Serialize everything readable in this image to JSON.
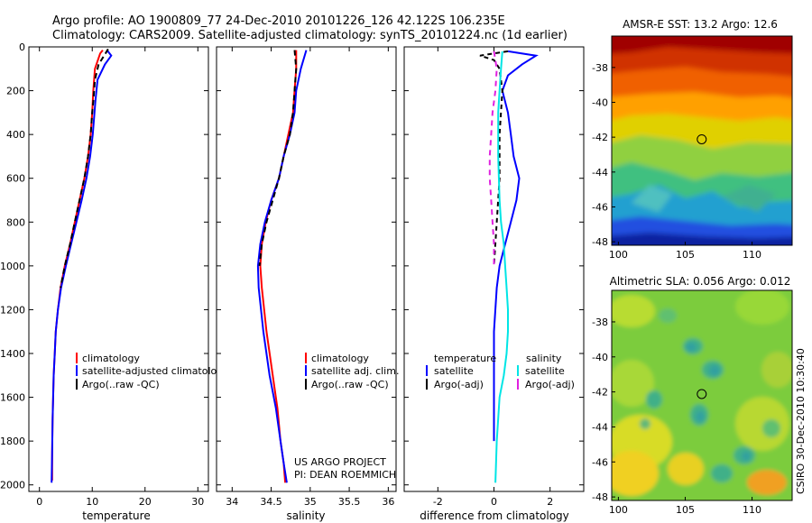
{
  "figure": {
    "title_line1": "Argo profile: AO 1900809_77 24-Dec-2010 20101226_126 42.122S 106.235E",
    "title_line2": "Climatology: CARS2009. Satellite-adjusted climatology: synTS_20101224.nc (1d earlier)",
    "credit_line1": "US ARGO PROJECT",
    "credit_line2": "PI: DEAN ROEMMICH",
    "side_label": "CSIRO 30-Dec-2010 10:30:40"
  },
  "colors": {
    "climatology": "#ff0000",
    "satellite": "#0000ff",
    "argo": "#000000",
    "satellite_salinity": "#00e5e5",
    "argo_salinity": "#e020e0"
  },
  "chart_data": [
    {
      "id": "temperature",
      "type": "line",
      "xlabel": "temperature",
      "xlim": [
        -2,
        32
      ],
      "xticks": [
        0,
        10,
        20,
        30
      ],
      "ylim": [
        2030,
        0
      ],
      "yticks": [
        0,
        200,
        400,
        600,
        800,
        1000,
        1200,
        1400,
        1600,
        1800,
        2000
      ],
      "legend": [
        "climatology",
        "satellite-adjusted climatology",
        "Argo(..raw -QC)"
      ],
      "series": [
        {
          "name": "climatology",
          "color": "#ff0000",
          "dash": "",
          "x": [
            12.0,
            11.5,
            10.5,
            10.2,
            10.0,
            9.7,
            9.2,
            8.5,
            7.6,
            6.7,
            5.8,
            4.8,
            4.0,
            3.5,
            3.1,
            2.9,
            2.7,
            2.5,
            2.4,
            2.4
          ],
          "y": [
            15,
            30,
            100,
            200,
            300,
            400,
            500,
            600,
            700,
            800,
            900,
            1000,
            1100,
            1200,
            1300,
            1400,
            1500,
            1700,
            1850,
            1980
          ]
        },
        {
          "name": "satellite-adjusted climatology",
          "color": "#0000ff",
          "dash": "",
          "x": [
            12.8,
            13.6,
            12.4,
            11.0,
            10.6,
            10.1,
            9.6,
            8.9,
            8.0,
            7.0,
            6.0,
            5.0,
            4.1,
            3.5,
            3.1,
            2.9,
            2.7,
            2.5,
            2.4,
            2.3
          ],
          "y": [
            15,
            40,
            80,
            150,
            250,
            400,
            500,
            600,
            700,
            800,
            900,
            1000,
            1100,
            1200,
            1300,
            1400,
            1500,
            1700,
            1850,
            1990
          ]
        },
        {
          "name": "Argo(..raw -QC)",
          "color": "#000000",
          "dash": "6,4",
          "x": [
            13.0,
            12.5,
            11.2,
            10.5,
            10.2,
            10.0,
            9.7,
            9.2,
            8.5,
            7.6,
            6.7,
            5.8,
            4.8,
            4.0
          ],
          "y": [
            10,
            30,
            80,
            150,
            250,
            300,
            400,
            500,
            600,
            700,
            800,
            900,
            1000,
            1100
          ]
        }
      ]
    },
    {
      "id": "salinity",
      "type": "line",
      "xlabel": "salinity",
      "xlim": [
        33.8,
        36.1
      ],
      "xticks": [
        34,
        34.5,
        35,
        35.5,
        36
      ],
      "ylim": [
        2030,
        0
      ],
      "legend": [
        "climatology",
        "satellite adj. clim.",
        "Argo(..raw -QC)"
      ],
      "series": [
        {
          "name": "climatology",
          "color": "#ff0000",
          "dash": "",
          "x": [
            34.82,
            34.82,
            34.8,
            34.78,
            34.72,
            34.66,
            34.6,
            34.5,
            34.43,
            34.38,
            34.36,
            34.38,
            34.44,
            34.52,
            34.58,
            34.62,
            34.66,
            34.68
          ],
          "y": [
            15,
            100,
            200,
            300,
            400,
            500,
            600,
            700,
            800,
            900,
            1000,
            1100,
            1300,
            1500,
            1650,
            1800,
            1900,
            1990
          ]
        },
        {
          "name": "satellite adj. clim.",
          "color": "#0000ff",
          "dash": "",
          "x": [
            34.95,
            34.88,
            34.82,
            34.8,
            34.74,
            34.66,
            34.6,
            34.5,
            34.42,
            34.36,
            34.33,
            34.34,
            34.4,
            34.48,
            34.56,
            34.62,
            34.66,
            34.7
          ],
          "y": [
            15,
            100,
            200,
            300,
            400,
            500,
            600,
            700,
            800,
            900,
            1000,
            1100,
            1300,
            1500,
            1650,
            1800,
            1900,
            1990
          ]
        },
        {
          "name": "Argo(..raw -QC)",
          "color": "#000000",
          "dash": "6,4",
          "x": [
            34.8,
            34.82,
            34.8,
            34.78,
            34.74,
            34.66,
            34.6,
            34.52,
            34.44,
            34.38,
            34.35
          ],
          "y": [
            15,
            100,
            200,
            300,
            400,
            500,
            600,
            700,
            800,
            900,
            1000
          ]
        }
      ]
    },
    {
      "id": "difference",
      "type": "line",
      "xlabel": "difference from climatology",
      "xlim": [
        -3.2,
        3.2
      ],
      "xticks": [
        -2,
        0,
        2
      ],
      "ylim": [
        2030,
        0
      ],
      "legend_left_title": "temperature",
      "legend_right_title": "salinity",
      "legend": [
        "satellite",
        "Argo(-adj)",
        "satellite",
        "Argo(-adj)"
      ],
      "series": [
        {
          "name": "satellite",
          "group": "temperature",
          "color": "#0000ff",
          "dash": "",
          "x": [
            0.5,
            1.5,
            1.0,
            0.5,
            0.3,
            0.5,
            0.6,
            0.7,
            0.9,
            0.8,
            0.6,
            0.4,
            0.2,
            0.1,
            0.0,
            0.0,
            0.0
          ],
          "y": [
            20,
            40,
            80,
            130,
            200,
            300,
            400,
            500,
            600,
            700,
            800,
            900,
            1000,
            1100,
            1300,
            1500,
            1800
          ]
        },
        {
          "name": "Argo(-adj)",
          "group": "temperature",
          "color": "#000000",
          "dash": "5,4",
          "x": [
            0.5,
            -0.5,
            0.0,
            0.2,
            0.3,
            0.2,
            0.2,
            0.1,
            0.0
          ],
          "y": [
            20,
            40,
            60,
            100,
            200,
            400,
            600,
            800,
            1000
          ]
        },
        {
          "name": "satellite",
          "group": "salinity",
          "color": "#00e5e5",
          "dash": "",
          "x": [
            0.3,
            0.25,
            0.2,
            0.15,
            0.15,
            0.2,
            0.25,
            0.35,
            0.4,
            0.45,
            0.5,
            0.5,
            0.45,
            0.35,
            0.2,
            0.1,
            0.05
          ],
          "y": [
            20,
            100,
            200,
            300,
            500,
            700,
            800,
            900,
            1000,
            1100,
            1200,
            1300,
            1400,
            1500,
            1600,
            1800,
            1990
          ]
        },
        {
          "name": "Argo(-adj)",
          "group": "salinity",
          "color": "#e020e0",
          "dash": "6,5",
          "x": [
            0.0,
            0.1,
            0.05,
            -0.05,
            -0.1,
            -0.15,
            -0.15,
            -0.1,
            -0.05,
            0.0,
            0.0
          ],
          "y": [
            20,
            100,
            200,
            300,
            400,
            500,
            600,
            700,
            800,
            900,
            1000
          ]
        }
      ]
    },
    {
      "id": "sst_map",
      "type": "heatmap",
      "title": "AMSR-E SST: 13.2 Argo: 12.6",
      "xlim": [
        99.5,
        113
      ],
      "xticks": [
        100,
        105,
        110
      ],
      "ylim": [
        -48.2,
        -36.2
      ],
      "yticks": [
        -38,
        -40,
        -42,
        -44,
        -46,
        -48
      ],
      "marker": {
        "lon": 106.235,
        "lat": -42.122
      }
    },
    {
      "id": "sla_map",
      "type": "heatmap",
      "title": "Altimetric SLA: 0.056 Argo: 0.012",
      "xlim": [
        99.5,
        113
      ],
      "xticks": [
        100,
        105,
        110
      ],
      "ylim": [
        -48.2,
        -36.2
      ],
      "yticks": [
        -38,
        -40,
        -42,
        -44,
        -46,
        -48
      ],
      "marker": {
        "lon": 106.235,
        "lat": -42.122
      }
    }
  ]
}
